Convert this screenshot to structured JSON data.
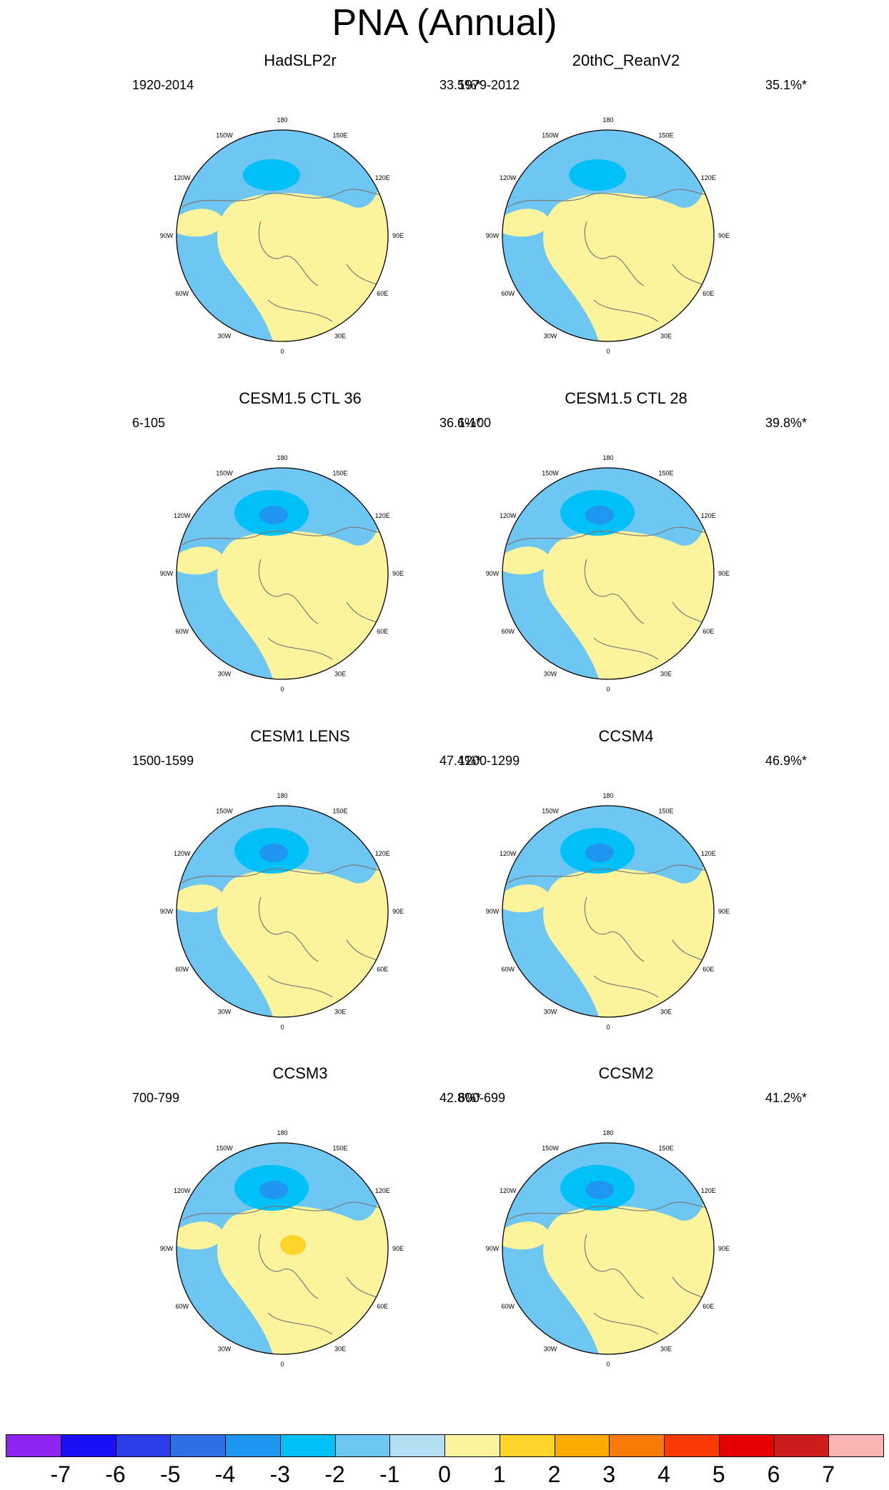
{
  "title": "PNA (Annual)",
  "lon_labels": [
    "180",
    "150E",
    "120E",
    "90E",
    "60E",
    "30E",
    "0",
    "30W",
    "60W",
    "90W",
    "120W",
    "150W"
  ],
  "panels": [
    {
      "title": "HadSLP2r",
      "period": "1920-2014",
      "variance": "33.5%*",
      "low_level": -2,
      "high_level": 0,
      "high_strength": 0.0
    },
    {
      "title": "20thC_ReanV2",
      "period": "1979-2012",
      "variance": "35.1%*",
      "low_level": -2,
      "high_level": 0,
      "high_strength": 0.0
    },
    {
      "title": "CESM1.5 CTL 36",
      "period": "6-105",
      "variance": "36.6%*",
      "low_level": -3,
      "high_level": 2,
      "high_strength": 0.5
    },
    {
      "title": "CESM1.5 CTL 28",
      "period": "1-100",
      "variance": "39.8%*",
      "low_level": -3,
      "high_level": 2,
      "high_strength": 0.5
    },
    {
      "title": "CESM1 LENS",
      "period": "1500-1599",
      "variance": "47.4%*",
      "low_level": -3,
      "high_level": 2,
      "high_strength": 0.6
    },
    {
      "title": "CCSM4",
      "period": "1200-1299",
      "variance": "46.9%*",
      "low_level": -3,
      "high_level": 2,
      "high_strength": 0.6
    },
    {
      "title": "CCSM3",
      "period": "700-799",
      "variance": "42.8%*",
      "low_level": -3,
      "high_level": 3,
      "high_strength": 1.0
    },
    {
      "title": "CCSM2",
      "period": "600-699",
      "variance": "41.2%*",
      "low_level": -3,
      "high_level": 2,
      "high_strength": 1.0
    }
  ],
  "colorbar": {
    "levels": [
      "-7",
      "-6",
      "-5",
      "-4",
      "-3",
      "-2",
      "-1",
      "0",
      "1",
      "2",
      "3",
      "4",
      "5",
      "6",
      "7"
    ],
    "colors": [
      "#8e24f0",
      "#1a10f5",
      "#2a3de8",
      "#2e6fe6",
      "#1e96f2",
      "#00c0f8",
      "#6ec6f2",
      "#b4def4",
      "#fbf49c",
      "#fdd52a",
      "#fbaa00",
      "#f87a08",
      "#fa3a04",
      "#e60000",
      "#cc1c1c",
      "#fab4b4"
    ]
  }
}
